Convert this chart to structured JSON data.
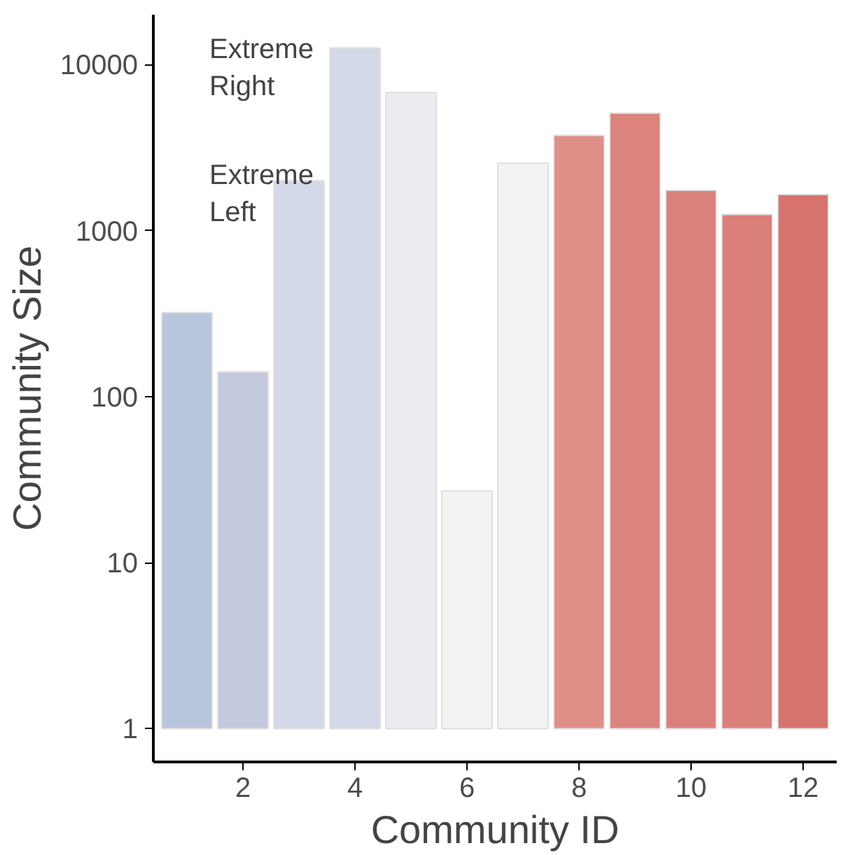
{
  "chart_data": {
    "type": "bar",
    "xlabel": "Community ID",
    "ylabel": "Community Size",
    "x": [
      1,
      2,
      3,
      4,
      5,
      6,
      7,
      8,
      9,
      10,
      11,
      12
    ],
    "values": [
      320,
      140,
      2000,
      12600,
      6800,
      26,
      2550,
      3750,
      5100,
      1750,
      1250,
      1650
    ],
    "colors": [
      "#b9c6de",
      "#c3cae0",
      "#d3d9e8",
      "#d3d9e8",
      "#ececf0",
      "#f3f3f3",
      "#f3f3f3",
      "#df8f88",
      "#db837c",
      "#db817b",
      "#db7f79",
      "#d6736d"
    ],
    "log": "y",
    "xlim": [
      0.4,
      12.6
    ],
    "xticks": [
      2,
      4,
      6,
      8,
      10,
      12
    ],
    "ylim": [
      0.63,
      20000
    ],
    "yticks": [
      1,
      10,
      100,
      1000,
      10000
    ],
    "base": [
      1,
      1,
      1,
      1,
      1,
      1,
      1,
      1,
      1,
      1,
      1,
      1
    ],
    "annotations": [
      "Extreme\nRight",
      "Extreme\nLeft"
    ],
    "grid": false
  }
}
